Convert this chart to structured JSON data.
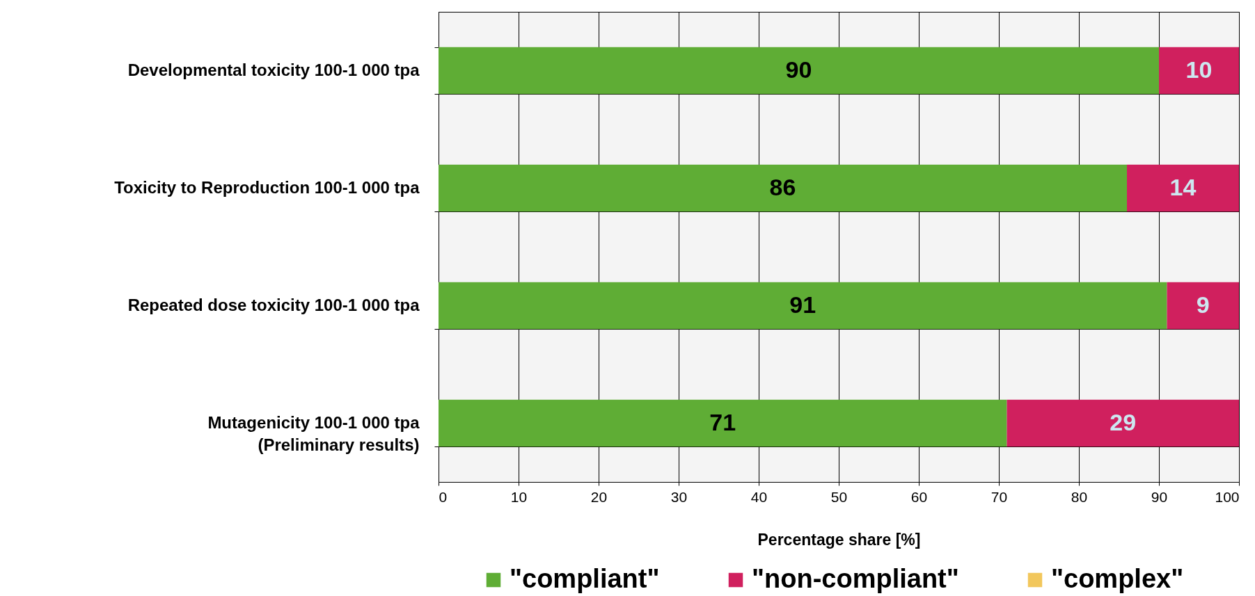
{
  "chart_data": {
    "type": "bar",
    "orientation": "horizontal",
    "stacked": true,
    "xlabel": "Percentage share [%]",
    "categories": [
      "Developmental toxicity 100-1 000 tpa",
      "Toxicity to Reproduction 100-1 000 tpa",
      "Repeated dose toxicity 100-1 000 tpa",
      "Mutagenicity 100-1 000 tpa\n(Preliminary results)"
    ],
    "series": [
      {
        "name": "\"compliant\"",
        "color": "#5fad35",
        "values": [
          90,
          86,
          91,
          71
        ]
      },
      {
        "name": "\"non-compliant\"",
        "color": "#d0205e",
        "values": [
          10,
          14,
          9,
          29
        ]
      },
      {
        "name": "\"complex\"",
        "color": "#f2c75c",
        "values": [
          null,
          null,
          null,
          null
        ]
      }
    ],
    "xlim": [
      0,
      100
    ],
    "xticks": [
      0,
      10,
      20,
      30,
      40,
      50,
      60,
      70,
      80,
      90,
      100
    ],
    "grid": true,
    "legend": "bottom",
    "data_labels": true
  }
}
